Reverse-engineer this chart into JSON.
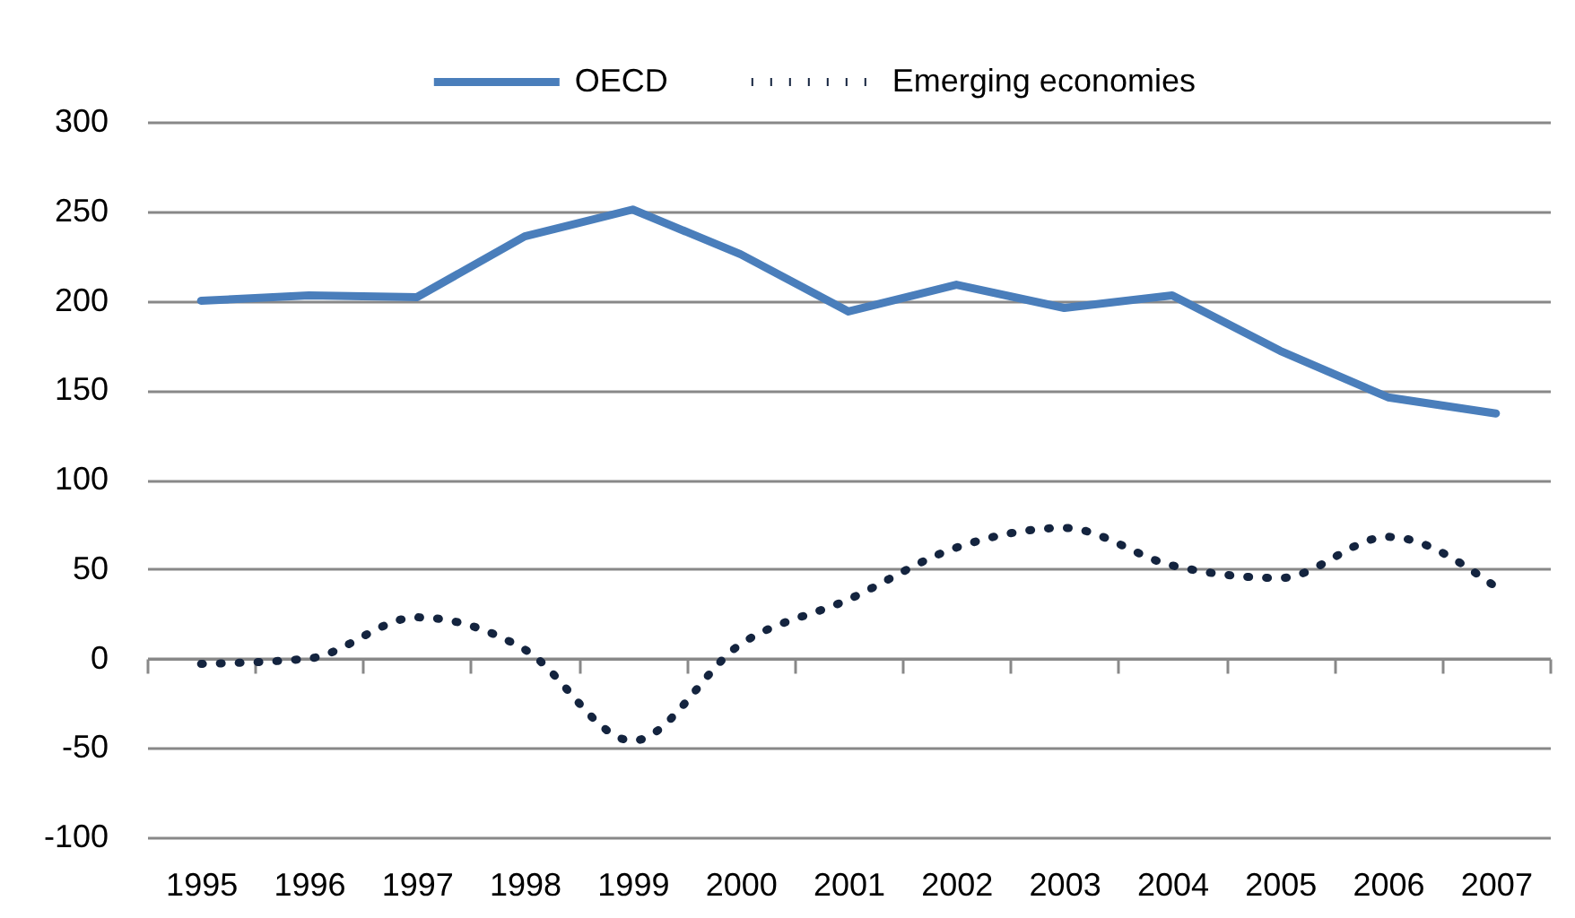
{
  "chart_data": {
    "type": "line",
    "categories": [
      "1995",
      "1996",
      "1997",
      "1998",
      "1999",
      "2000",
      "2001",
      "2002",
      "2003",
      "2004",
      "2005",
      "2006",
      "2007"
    ],
    "series": [
      {
        "name": "OECD",
        "color": "#4a7ebb",
        "line_style": "solid",
        "values": [
          200,
          203,
          202,
          236,
          251,
          226,
          194,
          209,
          196,
          203,
          172,
          146,
          137
        ]
      },
      {
        "name": "Emerging economies",
        "color": "#14243f",
        "line_style": "dotted",
        "values": [
          -3,
          0,
          23,
          5,
          -46,
          8,
          33,
          62,
          73,
          52,
          45,
          68,
          40
        ]
      }
    ],
    "ylim": [
      -100,
      300
    ],
    "yticks": [
      -100,
      -50,
      0,
      50,
      100,
      150,
      200,
      250,
      300
    ],
    "grid": "y",
    "legend": "top"
  }
}
